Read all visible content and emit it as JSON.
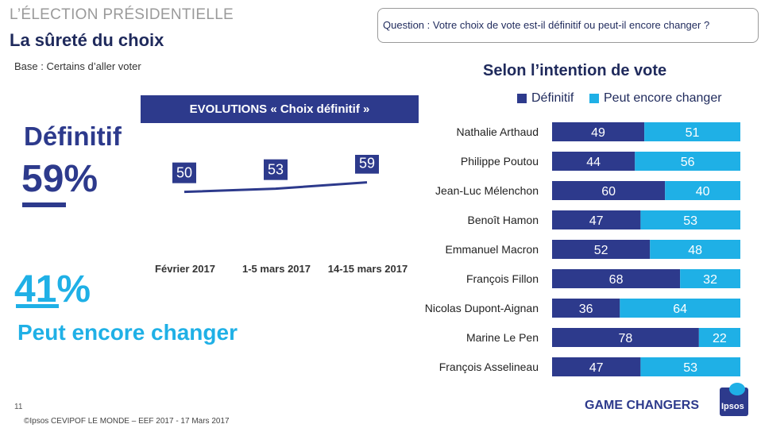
{
  "header": {
    "kicker": "L’ÉLECTION PRÉSIDENTIELLE",
    "title": "La sûreté du choix",
    "base": "Base : Certains d’aller voter"
  },
  "question": "Question : Votre choix de vote est-il définitif ou peut-il encore changer ?",
  "summary": {
    "definitif_label": "Définitif",
    "definitif_pct": "59%",
    "changer_pct": "41%",
    "changer_label": "Peut encore changer"
  },
  "evolution_banner": "EVOLUTIONS « Choix définitif »",
  "bar_title": "Selon l’intention de vote",
  "footer": {
    "page_number": "11",
    "source": "©Ipsos  CEVIPOF LE MONDE – EEF 2017 - 17 Mars 2017",
    "brand": "GAME CHANGERS",
    "logo_text": "Ipsos"
  },
  "colors": {
    "navy": "#2d3a8c",
    "cyan": "#1fb0e6"
  },
  "chart_data": [
    {
      "type": "line",
      "title": "EVOLUTIONS « Choix définitif »",
      "x": [
        "Février 2017",
        "1-5 mars 2017",
        "14-15 mars 2017"
      ],
      "series": [
        {
          "values": [
            50,
            53,
            59
          ]
        }
      ],
      "ylim": [
        40,
        70
      ],
      "grid": false
    },
    {
      "type": "bar",
      "stacked": true,
      "orientation": "horizontal",
      "title": "Selon l’intention de vote",
      "categories": [
        "Nathalie Arthaud",
        "Philippe Poutou",
        "Jean-Luc Mélenchon",
        "Benoît Hamon",
        "Emmanuel Macron",
        "François Fillon",
        "Nicolas Dupont-Aignan",
        "Marine Le Pen",
        "François Asselineau"
      ],
      "series": [
        {
          "name": "Définitif",
          "values": [
            49,
            44,
            60,
            47,
            52,
            68,
            36,
            78,
            47
          ]
        },
        {
          "name": "Peut encore changer",
          "values": [
            51,
            56,
            40,
            53,
            48,
            32,
            64,
            22,
            53
          ]
        }
      ],
      "xlim": [
        0,
        100
      ],
      "legend": "top"
    }
  ]
}
